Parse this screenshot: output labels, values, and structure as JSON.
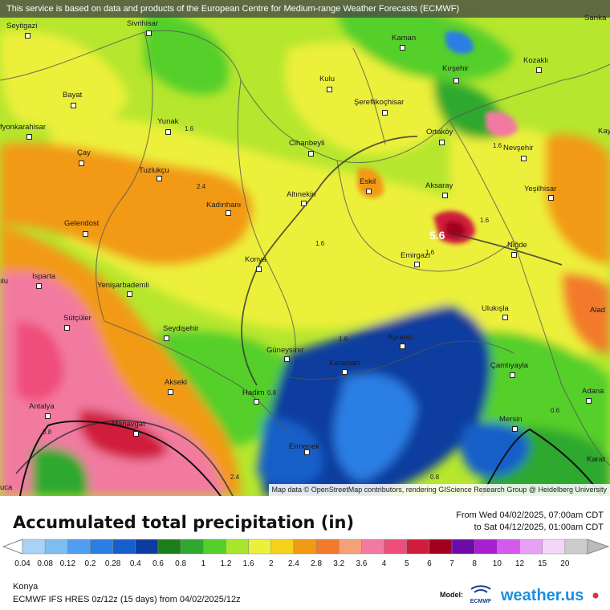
{
  "attribution_top": "This service is based on data and products of the European Centre for Medium-range Weather Forecasts (ECMWF)",
  "attribution_bottom": "Map data © OpenStreetMap contributors, rendering GIScience Research Group @ Heidelberg University",
  "title": "Accumulated total precipitation (in)",
  "period": {
    "from": "From Wed 04/02/2025, 07:00am CDT",
    "to": "to Sat 04/12/2025, 01:00am CDT"
  },
  "location": "Konya",
  "model_line": "ECMWF IFS HRES 0z/12z (15 days) from  04/02/2025/12z",
  "model_label": "Model:",
  "ecmwf_label": "ECMWF",
  "brand": "weather.us",
  "legend": {
    "values": [
      "0.04",
      "0.08",
      "0.12",
      "0.2",
      "0.28",
      "0.4",
      "0.6",
      "0.8",
      "1",
      "1.2",
      "1.6",
      "2",
      "2.4",
      "2.8",
      "3.2",
      "3.6",
      "4",
      "5",
      "6",
      "7",
      "8",
      "10",
      "12",
      "15",
      "20"
    ],
    "colors": [
      "#a9d2f5",
      "#7cbdf2",
      "#4f9ef0",
      "#2a7ee4",
      "#165ec9",
      "#0c3d9e",
      "#1a7f1a",
      "#2ea82e",
      "#55cf2a",
      "#a6e62d",
      "#ecf03a",
      "#f6d21a",
      "#f29a16",
      "#f27a2a",
      "#f5a07a",
      "#f27aa0",
      "#ef4d7a",
      "#d01d3c",
      "#a0001e",
      "#6e0aa8",
      "#a81ed0",
      "#d25aec",
      "#e8a0f5",
      "#f3d6f8",
      "#cccccc"
    ]
  },
  "cities": [
    {
      "name": "Seyitgazi"
    },
    {
      "name": "Sivrihisar"
    },
    {
      "name": "Kaman"
    },
    {
      "name": "Kırşehir"
    },
    {
      "name": "Kozaklı"
    },
    {
      "name": "Kulu"
    },
    {
      "name": "Şereflikoçhisar"
    },
    {
      "name": "Bayat"
    },
    {
      "name": "Yunak"
    },
    {
      "name": "fyonkarahisar"
    },
    {
      "name": "Ortaköy"
    },
    {
      "name": "Nevşehir"
    },
    {
      "name": "Cihanbeyli"
    },
    {
      "name": "Çay"
    },
    {
      "name": "Tuzlukçu"
    },
    {
      "name": "Eskil"
    },
    {
      "name": "Aksaray"
    },
    {
      "name": "Yeşilhisar"
    },
    {
      "name": "Altınekin"
    },
    {
      "name": "Kadınhanı"
    },
    {
      "name": "Gelendost"
    },
    {
      "name": "Niğde"
    },
    {
      "name": "Konya"
    },
    {
      "name": "Emirgazi"
    },
    {
      "name": "Isparta"
    },
    {
      "name": "Yenişarbademli"
    },
    {
      "name": "Ulukışla"
    },
    {
      "name": "Sütçüler"
    },
    {
      "name": "Seydişehir"
    },
    {
      "name": "Ayrancı"
    },
    {
      "name": "Güneysınır"
    },
    {
      "name": "Karaman"
    },
    {
      "name": "Çamlıyayla"
    },
    {
      "name": "Akseki"
    },
    {
      "name": "Hadim"
    },
    {
      "name": "Antalya"
    },
    {
      "name": "Manavgat"
    },
    {
      "name": "Ermenek"
    },
    {
      "name": "Mersin"
    },
    {
      "name": "Adana"
    },
    {
      "name": "Karat"
    },
    {
      "name": "Sarıka"
    },
    {
      "name": "Kay"
    },
    {
      "name": "Alad"
    },
    {
      "name": "ılu"
    },
    {
      "name": "uca"
    }
  ],
  "contour_labels": [
    "1.6",
    "2.4",
    "1.6",
    "1.6",
    "1.6",
    "1.6",
    "1.6",
    "0.8",
    "0.8",
    "0.8",
    "2.4",
    "0.6"
  ],
  "peak_value": "5.6"
}
